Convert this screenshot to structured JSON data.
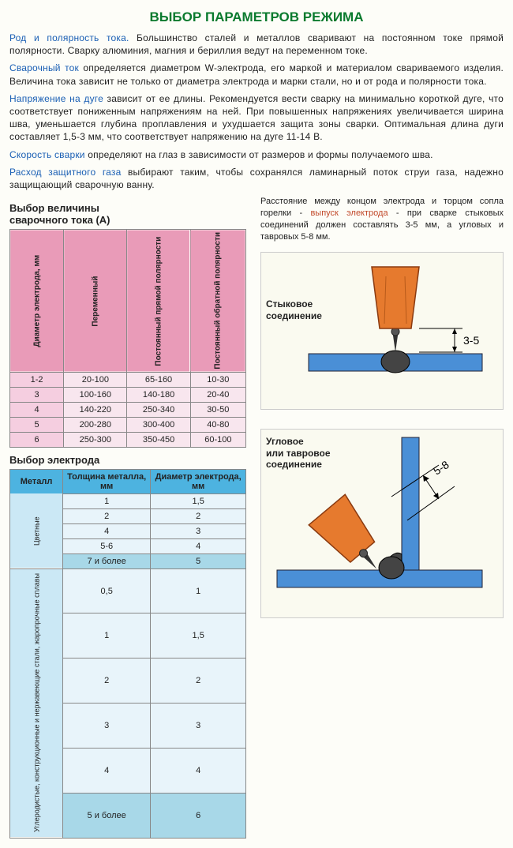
{
  "title": "ВЫБОР ПАРАМЕТРОВ РЕЖИМА",
  "paragraphs": {
    "p1k": "Род и полярность тока.",
    "p1t": " Большинство сталей и металлов сваривают на постоянном токе прямой полярности. Сварку алюминия, магния и бериллия ведут на переменном токе.",
    "p2k": "Сварочный ток",
    "p2t": " определяется диаметром W-электрода, его маркой и материалом свариваемого изделия. Величина тока зависит не только от диаметра электрода и марки стали, но и от рода и полярности тока.",
    "p3k": "Напряжение на дуге",
    "p3t": " зависит от ее длины. Рекомендуется вести сварку на минимально короткой дуге, что соответствует пониженным напряжениям на ней. При повышенных напряжениях увеличивается ширина шва, уменьшается глубина проплавления и ухудшается защита зоны сварки. Оптимальная длина дуги составляет 1,5-3 мм, что соответствует напряжению на дуге 11-14 В.",
    "p4k": "Скорость сварки",
    "p4t": " определяют на глаз в зависимости от размеров и формы получаемого шва.",
    "p5k": "Расход защитного газа",
    "p5t": " выбирают таким, чтобы сохранялся ламинарный поток струи газа, надежно защищающий сварочную ванну."
  },
  "table1": {
    "heading_l1": "Выбор величины",
    "heading_l2": "сварочного тока (А)",
    "col_headers": [
      "Диаметр электрода, мм",
      "Переменный",
      "Постоянный прямой полярности",
      "Постоянный обратной полярности"
    ],
    "rows": [
      [
        "1-2",
        "20-100",
        "65-160",
        "10-30"
      ],
      [
        "3",
        "100-160",
        "140-180",
        "20-40"
      ],
      [
        "4",
        "140-220",
        "250-340",
        "30-50"
      ],
      [
        "5",
        "200-280",
        "300-400",
        "40-80"
      ],
      [
        "6",
        "250-300",
        "350-450",
        "60-100"
      ]
    ],
    "header_bg": "#e99bb8",
    "row_label_bg": "#f5cee0",
    "cell_bg": "#f8e6ee"
  },
  "table2": {
    "heading": "Выбор электрода",
    "col_headers": [
      "Металл",
      "Толщина металла, мм",
      "Диаметр электрода, мм"
    ],
    "group1": {
      "label": "Цветные",
      "rows": [
        [
          "1",
          "1,5"
        ],
        [
          "2",
          "2"
        ],
        [
          "4",
          "3"
        ],
        [
          "5-6",
          "4"
        ],
        [
          "7 и более",
          "5"
        ]
      ],
      "hl_row": 4
    },
    "group2": {
      "label": "Углеродистые, конструкционные и нержавеющие стали, жаропрочные сплавы",
      "rows": [
        [
          "0,5",
          "1"
        ],
        [
          "1",
          "1,5"
        ],
        [
          "2",
          "2"
        ],
        [
          "3",
          "3"
        ],
        [
          "4",
          "4"
        ],
        [
          "5 и более",
          "6"
        ]
      ],
      "hl_row": 5
    },
    "header_bg": "#4db3e0"
  },
  "right_panel": {
    "caption_p1": "Расстояние между концом электрода и торцом сопла горелки - ",
    "caption_kw": "выпуск электрода",
    "caption_p2": " - при сварке стыковых соединений должен составлять 3-5 мм, а угловых и тавровых 5-8 мм.",
    "diag1_label_l1": "Стыковое",
    "diag1_label_l2": "соединение",
    "diag1_dim": "3-5",
    "diag2_label_l1": "Угловое",
    "diag2_label_l2": "или тавровое",
    "diag2_label_l3": "соединение",
    "diag2_dim": "5-8",
    "nozzle_color": "#e67a2e",
    "plate_color": "#4a8fd6",
    "tip_color": "#333333"
  }
}
